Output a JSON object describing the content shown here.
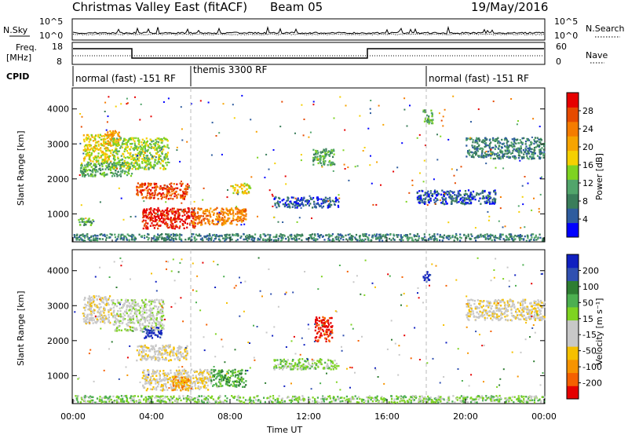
{
  "header": {
    "title": "Christmas Valley East (fitACF)",
    "beam": "Beam 05",
    "date": "19/May/2016"
  },
  "noise_panel": {
    "left_label": "N.Sky",
    "right_label": "N.Search",
    "left_ticks": [
      "10^5",
      "10^0"
    ],
    "right_ticks": [
      "10^5",
      "10^0"
    ]
  },
  "freq_panel": {
    "left_label_line1": "Freq.",
    "left_label_line2": "[MHz]",
    "right_label": "Nave",
    "left_ticks": [
      "18",
      "8"
    ],
    "right_ticks": [
      "60",
      "0"
    ],
    "freq_steps": [
      {
        "t0": 0,
        "t1": 3,
        "level": "high"
      },
      {
        "t0": 3,
        "t1": 15,
        "level": "low"
      },
      {
        "t0": 15,
        "t1": 24,
        "level": "high"
      }
    ]
  },
  "cpid_panel": {
    "label": "CPID",
    "segments": [
      {
        "text": "normal (fast) -151 RF",
        "t0": 0,
        "t1": 6
      },
      {
        "text": "themis 3300 RF",
        "t0": 6,
        "t1": 18
      },
      {
        "text": "normal (fast) -151 RF",
        "t0": 18,
        "t1": 24
      }
    ]
  },
  "chart_data": [
    {
      "type": "heatmap",
      "name": "power",
      "ylabel": "Slant Range [km]",
      "ylim": [
        200,
        4600
      ],
      "yticks": [
        "1000",
        "2000",
        "3000",
        "4000"
      ],
      "xlim": [
        0,
        24
      ],
      "colorbar": {
        "label": "Power [dB]",
        "ticks": [
          "28",
          "24",
          "20",
          "16",
          "12",
          "8",
          "4"
        ],
        "colors": [
          "#0000ff",
          "#2e5c9e",
          "#3a7d5a",
          "#52a56b",
          "#7ed321",
          "#f5d000",
          "#f7a400",
          "#f57c00",
          "#e64a00",
          "#e60000"
        ]
      },
      "blobs": [
        {
          "t0": 0.5,
          "t1": 2.0,
          "r0": 2500,
          "r1": 3300,
          "level": 5
        },
        {
          "t0": 1.6,
          "t1": 2.4,
          "r0": 3000,
          "r1": 3400,
          "level": 6
        },
        {
          "t0": 0.3,
          "t1": 3.0,
          "r0": 2100,
          "r1": 2500,
          "level": 3
        },
        {
          "t0": 2.0,
          "t1": 4.8,
          "r0": 2300,
          "r1": 3200,
          "level": 4
        },
        {
          "t0": 3.2,
          "t1": 5.8,
          "r0": 1450,
          "r1": 1900,
          "level": 8
        },
        {
          "t0": 3.5,
          "t1": 6.2,
          "r0": 600,
          "r1": 1200,
          "level": 9
        },
        {
          "t0": 6.0,
          "t1": 8.8,
          "r0": 700,
          "r1": 1200,
          "level": 7
        },
        {
          "t0": 0.2,
          "t1": 1.0,
          "r0": 700,
          "r1": 900,
          "level": 3
        },
        {
          "t0": 8.0,
          "t1": 9.0,
          "r0": 1600,
          "r1": 1900,
          "level": 5
        },
        {
          "t0": 10.2,
          "t1": 13.5,
          "r0": 1200,
          "r1": 1500,
          "level": 1
        },
        {
          "t0": 12.2,
          "t1": 13.3,
          "r0": 2400,
          "r1": 2900,
          "level": 3
        },
        {
          "t0": 17.5,
          "t1": 21.5,
          "r0": 1300,
          "r1": 1700,
          "level": 1
        },
        {
          "t0": 20.0,
          "t1": 24.0,
          "r0": 2600,
          "r1": 3200,
          "level": 2
        },
        {
          "t0": 17.8,
          "t1": 18.3,
          "r0": 3600,
          "r1": 4000,
          "level": 3
        },
        {
          "t0": 0.0,
          "t1": 24.0,
          "r0": 250,
          "r1": 450,
          "level": 2
        }
      ]
    },
    {
      "type": "heatmap",
      "name": "velocity",
      "ylabel": "Slant Range [km]",
      "ylim": [
        200,
        4600
      ],
      "yticks": [
        "1000",
        "2000",
        "3000",
        "4000"
      ],
      "xlim": [
        0,
        24
      ],
      "xticks": [
        "00:00",
        "04:00",
        "08:00",
        "12:00",
        "16:00",
        "20:00",
        "00:00"
      ],
      "xlabel": "Time UT",
      "colorbar": {
        "label": "Velocity [m s⁻¹]",
        "ticks": [
          "200",
          "100",
          "50",
          "15",
          "-15",
          "-50",
          "-100",
          "-200"
        ],
        "colors": [
          "#e60000",
          "#f56000",
          "#f79400",
          "#f5c000",
          "#c8c8c8",
          "#c8c8c8",
          "#7ed321",
          "#4caf50",
          "#2e7d32",
          "#3050b0",
          "#1020c0"
        ]
      },
      "blobs": [
        {
          "t0": 0.5,
          "t1": 2.0,
          "r0": 2500,
          "r1": 3300,
          "level": 4
        },
        {
          "t0": 2.0,
          "t1": 4.6,
          "r0": 2300,
          "r1": 3200,
          "level": 5
        },
        {
          "t0": 3.6,
          "t1": 4.5,
          "r0": 2100,
          "r1": 2400,
          "level": 10
        },
        {
          "t0": 3.2,
          "t1": 5.8,
          "r0": 1450,
          "r1": 1900,
          "level": 4
        },
        {
          "t0": 3.5,
          "t1": 7.0,
          "r0": 600,
          "r1": 1200,
          "level": 4
        },
        {
          "t0": 5.0,
          "t1": 6.0,
          "r0": 600,
          "r1": 1000,
          "level": 2
        },
        {
          "t0": 7.0,
          "t1": 8.8,
          "r0": 700,
          "r1": 1200,
          "level": 7
        },
        {
          "t0": 12.3,
          "t1": 13.2,
          "r0": 2000,
          "r1": 2700,
          "level": 0
        },
        {
          "t0": 10.2,
          "t1": 13.5,
          "r0": 1200,
          "r1": 1500,
          "level": 6
        },
        {
          "t0": 20.0,
          "t1": 24.0,
          "r0": 2600,
          "r1": 3200,
          "level": 4
        },
        {
          "t0": 17.8,
          "t1": 18.2,
          "r0": 3700,
          "r1": 4000,
          "level": 10
        },
        {
          "t0": 0.0,
          "t1": 24.0,
          "r0": 250,
          "r1": 450,
          "level": 6
        }
      ]
    }
  ]
}
